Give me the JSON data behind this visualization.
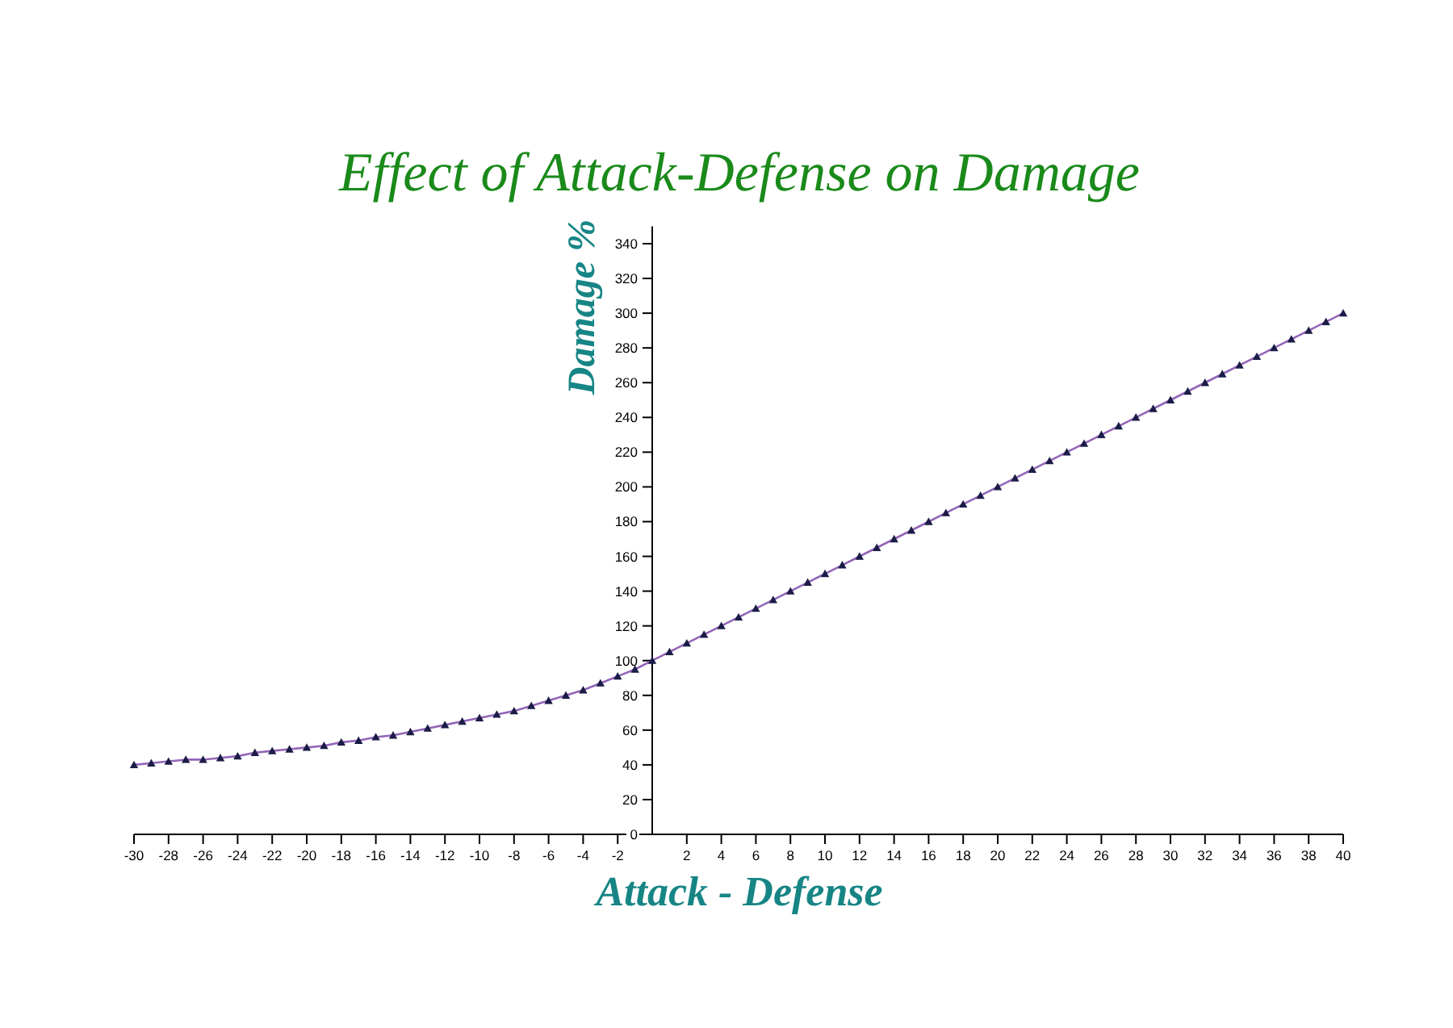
{
  "chart_data": {
    "type": "line",
    "title": "Effect of Attack-Defense on Damage",
    "xlabel": "Attack - Defense",
    "ylabel": "Damage %",
    "marker": "triangle",
    "line_style": "solid",
    "grid": false,
    "xlim": [
      -30,
      40
    ],
    "ylim": [
      0,
      350
    ],
    "xticks": [
      -30,
      -28,
      -26,
      -24,
      -22,
      -20,
      -18,
      -16,
      -14,
      -12,
      -10,
      -8,
      -6,
      -4,
      -2,
      2,
      4,
      6,
      8,
      10,
      12,
      14,
      16,
      18,
      20,
      22,
      24,
      26,
      28,
      30,
      32,
      34,
      36,
      38,
      40
    ],
    "yticks": [
      0,
      20,
      40,
      60,
      80,
      100,
      120,
      140,
      160,
      180,
      200,
      220,
      240,
      260,
      280,
      300,
      320,
      340
    ],
    "series": [
      {
        "color": "#9366b8",
        "x": [
          -30,
          -29,
          -28,
          -27,
          -26,
          -25,
          -24,
          -23,
          -22,
          -21,
          -20,
          -19,
          -18,
          -17,
          -16,
          -15,
          -14,
          -13,
          -12,
          -11,
          -10,
          -9,
          -8,
          -7,
          -6,
          -5,
          -4,
          -3,
          -2,
          -1,
          0,
          1,
          2,
          3,
          4,
          5,
          6,
          7,
          8,
          9,
          10,
          11,
          12,
          13,
          14,
          15,
          16,
          17,
          18,
          19,
          20,
          21,
          22,
          23,
          24,
          25,
          26,
          27,
          28,
          29,
          30,
          31,
          32,
          33,
          34,
          35,
          36,
          37,
          38,
          39,
          40
        ],
        "values": [
          40,
          41,
          42,
          43,
          43,
          44,
          45,
          47,
          48,
          49,
          50,
          51,
          53,
          54,
          56,
          57,
          59,
          61,
          63,
          65,
          67,
          69,
          71,
          74,
          77,
          80,
          83,
          87,
          91,
          95,
          100,
          105,
          110,
          115,
          120,
          125,
          130,
          135,
          140,
          145,
          150,
          155,
          160,
          165,
          170,
          175,
          180,
          185,
          190,
          195,
          200,
          205,
          210,
          215,
          220,
          225,
          230,
          235,
          240,
          245,
          250,
          255,
          260,
          265,
          270,
          275,
          280,
          285,
          290,
          295,
          300
        ]
      }
    ]
  }
}
